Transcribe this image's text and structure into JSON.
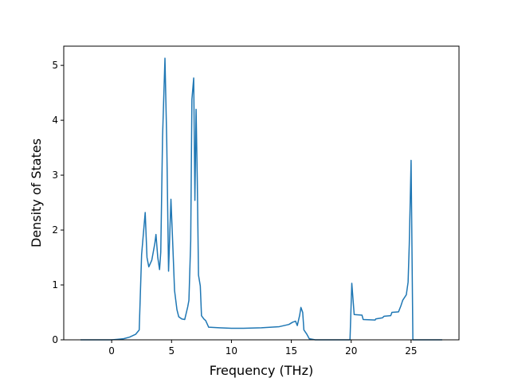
{
  "chart_data": {
    "type": "line",
    "xlabel": "Frequency (THz)",
    "ylabel": "Density of States",
    "xlim": [
      -4.0,
      29.0
    ],
    "ylim": [
      0,
      5.35
    ],
    "xticks": [
      0,
      5,
      10,
      15,
      20,
      25
    ],
    "yticks": [
      0,
      1,
      2,
      3,
      4,
      5
    ],
    "grid": false,
    "line_color": "#1f77b4",
    "series": [
      {
        "points": [
          [
            -2.6,
            0.0
          ],
          [
            0.0,
            0.0
          ],
          [
            0.5,
            0.01
          ],
          [
            1.0,
            0.02
          ],
          [
            1.5,
            0.05
          ],
          [
            2.0,
            0.1
          ],
          [
            2.3,
            0.18
          ],
          [
            2.5,
            1.55
          ],
          [
            2.8,
            2.32
          ],
          [
            2.95,
            1.5
          ],
          [
            3.1,
            1.33
          ],
          [
            3.35,
            1.45
          ],
          [
            3.6,
            1.75
          ],
          [
            3.7,
            1.92
          ],
          [
            3.85,
            1.5
          ],
          [
            4.0,
            1.28
          ],
          [
            4.1,
            1.6
          ],
          [
            4.25,
            3.7
          ],
          [
            4.45,
            5.13
          ],
          [
            4.6,
            3.6
          ],
          [
            4.75,
            1.25
          ],
          [
            4.95,
            2.56
          ],
          [
            5.1,
            1.75
          ],
          [
            5.25,
            0.9
          ],
          [
            5.45,
            0.55
          ],
          [
            5.6,
            0.42
          ],
          [
            5.85,
            0.38
          ],
          [
            6.1,
            0.37
          ],
          [
            6.35,
            0.6
          ],
          [
            6.45,
            0.72
          ],
          [
            6.6,
            1.8
          ],
          [
            6.7,
            4.38
          ],
          [
            6.85,
            4.77
          ],
          [
            6.95,
            2.54
          ],
          [
            7.05,
            4.2
          ],
          [
            7.15,
            2.9
          ],
          [
            7.25,
            1.18
          ],
          [
            7.4,
            0.98
          ],
          [
            7.5,
            0.44
          ],
          [
            7.7,
            0.38
          ],
          [
            7.85,
            0.35
          ],
          [
            8.1,
            0.23
          ],
          [
            9.0,
            0.22
          ],
          [
            10.0,
            0.21
          ],
          [
            11.0,
            0.21
          ],
          [
            12.5,
            0.22
          ],
          [
            14.0,
            0.24
          ],
          [
            14.8,
            0.28
          ],
          [
            15.1,
            0.32
          ],
          [
            15.35,
            0.34
          ],
          [
            15.5,
            0.26
          ],
          [
            15.7,
            0.45
          ],
          [
            15.8,
            0.59
          ],
          [
            15.95,
            0.5
          ],
          [
            16.05,
            0.18
          ],
          [
            16.3,
            0.1
          ],
          [
            16.5,
            0.02
          ],
          [
            17.0,
            0.0
          ],
          [
            19.9,
            0.0
          ],
          [
            20.05,
            1.03
          ],
          [
            20.25,
            0.46
          ],
          [
            20.9,
            0.45
          ],
          [
            21.0,
            0.37
          ],
          [
            22.0,
            0.36
          ],
          [
            22.05,
            0.38
          ],
          [
            22.6,
            0.4
          ],
          [
            22.75,
            0.43
          ],
          [
            23.3,
            0.44
          ],
          [
            23.4,
            0.5
          ],
          [
            23.95,
            0.51
          ],
          [
            24.15,
            0.62
          ],
          [
            24.3,
            0.72
          ],
          [
            24.6,
            0.82
          ],
          [
            24.75,
            1.05
          ],
          [
            24.85,
            1.75
          ],
          [
            25.0,
            3.27
          ],
          [
            25.15,
            0.0
          ],
          [
            27.6,
            0.0
          ]
        ]
      }
    ]
  }
}
